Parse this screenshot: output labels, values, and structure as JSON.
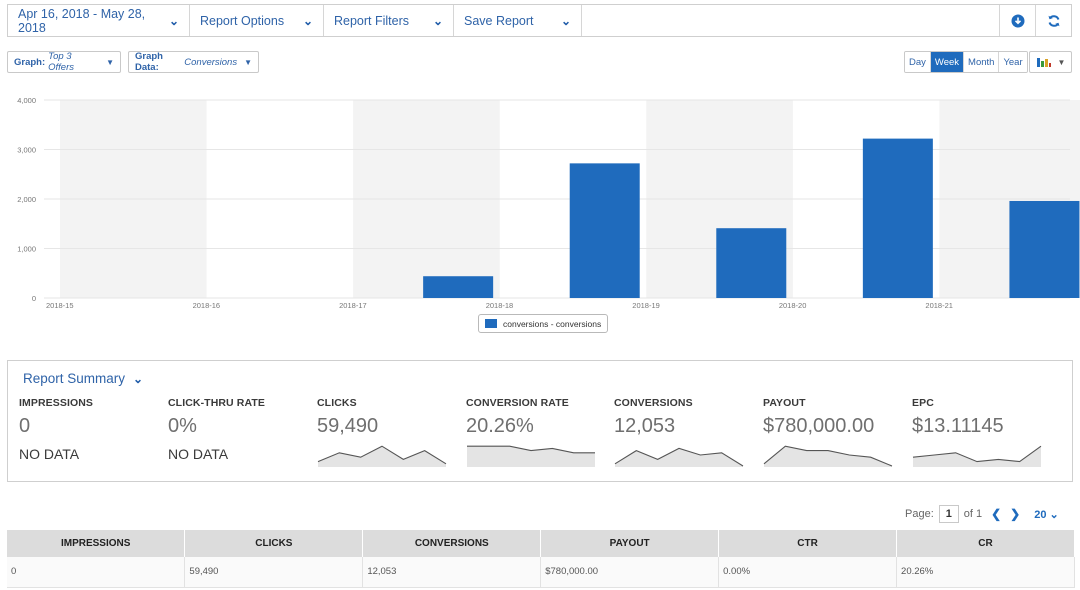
{
  "toolbar": {
    "date_range": "Apr 16, 2018 - May 28, 2018",
    "report_options": "Report Options",
    "report_filters": "Report Filters",
    "save_report": "Save Report",
    "icons": [
      "download-icon",
      "refresh-icon"
    ]
  },
  "graph_controls": {
    "graph_label": "Graph:",
    "graph_value": "Top 3 Offers",
    "data_label": "Graph Data:",
    "data_value": "Conversions",
    "periods": [
      "Day",
      "Week",
      "Month",
      "Year"
    ],
    "active_period": "Week"
  },
  "chart_data": {
    "type": "bar",
    "categories": [
      "2018-15",
      "2018-16",
      "2018-17",
      "2018-18",
      "2018-19",
      "2018-20",
      "2018-21"
    ],
    "series": [
      {
        "name": "conversions - conversions",
        "values": [
          0,
          0,
          440,
          2720,
          1410,
          3220,
          1960
        ]
      }
    ],
    "yticks": [
      "0",
      "1,000",
      "2,000",
      "3,000",
      "4,000"
    ],
    "ylim": [
      0,
      4000
    ],
    "grid": true,
    "bar_color": "#1f6bbd",
    "legend_position": "bottom"
  },
  "summary": {
    "title": "Report Summary",
    "metrics": [
      {
        "label": "IMPRESSIONS",
        "value": "0",
        "nodata": "NO DATA"
      },
      {
        "label": "CLICK-THRU RATE",
        "value": "0%",
        "nodata": "NO DATA"
      },
      {
        "label": "CLICKS",
        "value": "59,490",
        "spark": [
          2,
          6,
          4,
          9,
          3,
          7,
          1
        ]
      },
      {
        "label": "CONVERSION RATE",
        "value": "20.26%",
        "spark": [
          9,
          9,
          9,
          7,
          8,
          6,
          6
        ]
      },
      {
        "label": "CONVERSIONS",
        "value": "12,053",
        "spark": [
          1,
          7,
          3,
          8,
          5,
          6,
          0
        ]
      },
      {
        "label": "PAYOUT",
        "value": "$780,000.00",
        "spark": [
          1,
          9,
          7,
          7,
          5,
          4,
          0
        ]
      },
      {
        "label": "EPC",
        "value": "$13.11145",
        "spark": [
          4,
          5,
          6,
          2,
          3,
          2,
          9
        ]
      }
    ]
  },
  "pager": {
    "page_label": "Page:",
    "page": "1",
    "of_label": "of 1",
    "page_size": "20"
  },
  "table": {
    "headers": [
      "IMPRESSIONS",
      "CLICKS",
      "CONVERSIONS",
      "PAYOUT",
      "CTR",
      "CR"
    ],
    "rows": [
      [
        "0",
        "59,490",
        "12,053",
        "$780,000.00",
        "0.00%",
        "20.26%"
      ]
    ]
  }
}
